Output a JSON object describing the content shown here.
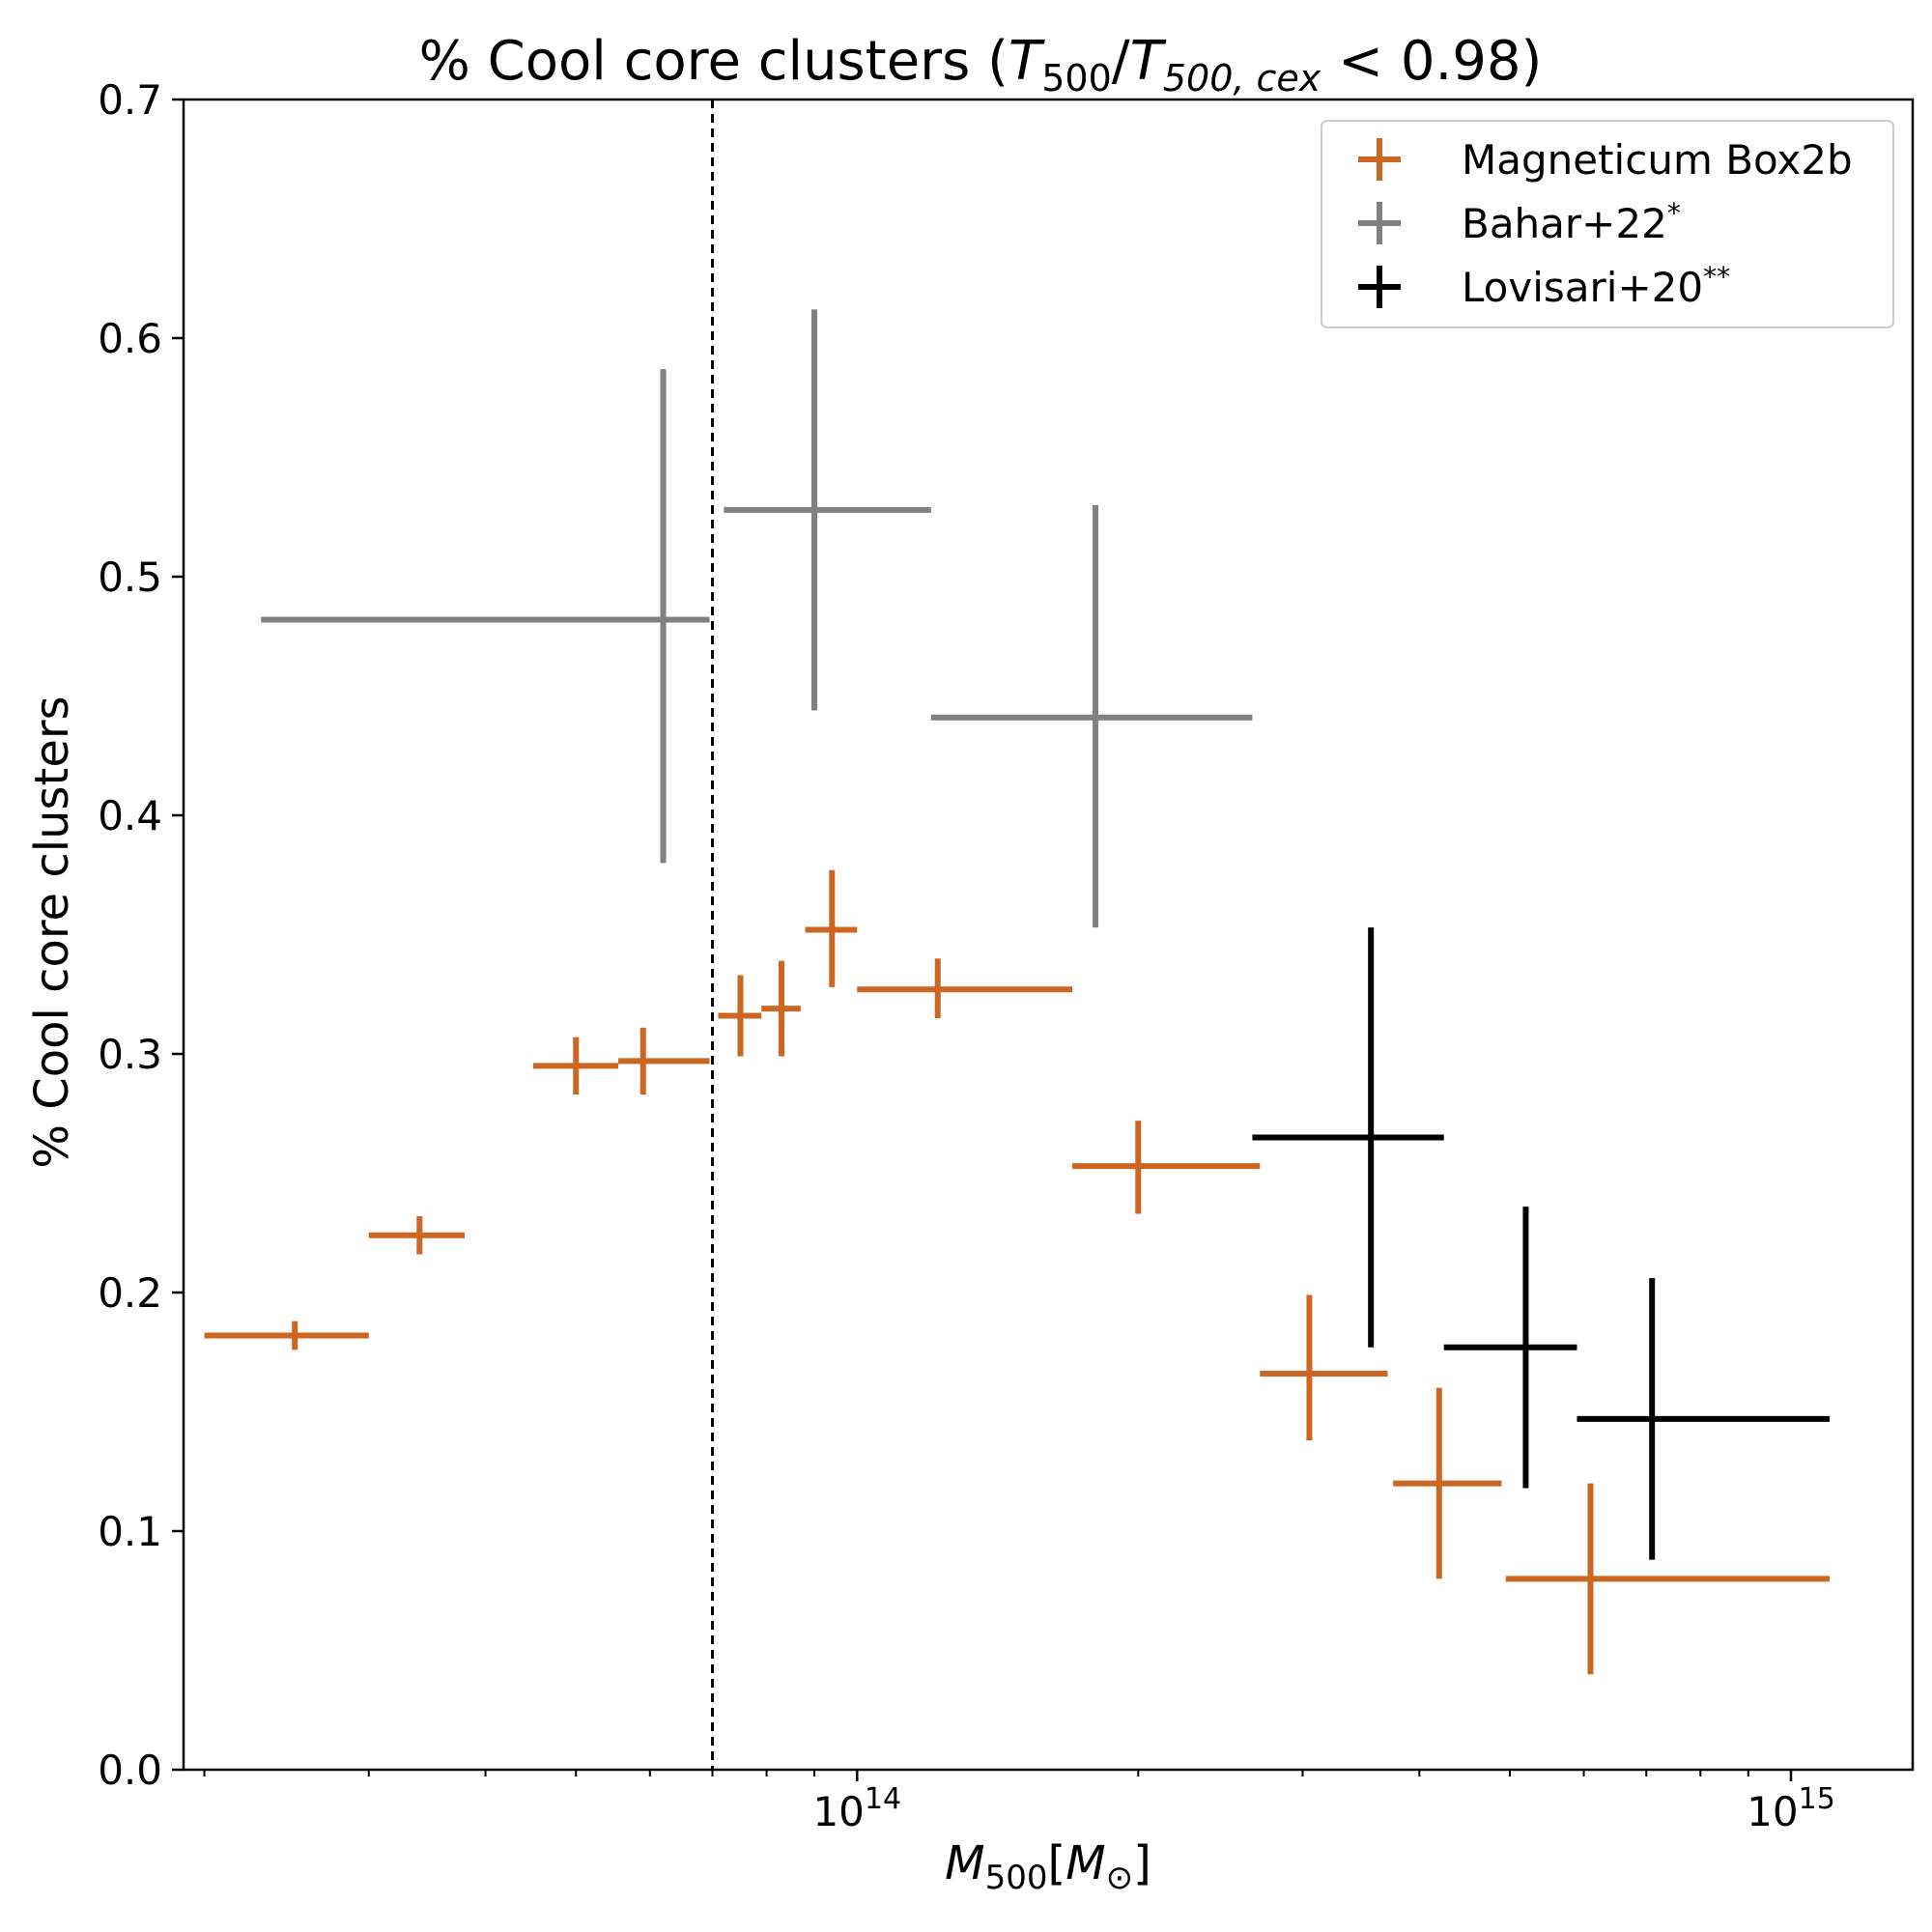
{
  "chart_data": {
    "type": "scatter",
    "title_parts": {
      "prefix": "% Cool core clusters (",
      "t1": "T",
      "t1_sub": "500",
      "slash": "/",
      "t2": "T",
      "t2_sub": "500, cex",
      "suffix": " < 0.98)"
    },
    "xlabel_parts": {
      "m": "M",
      "m_sub": "500",
      "open": "[",
      "msun": "M",
      "msun_sub": "⊙",
      "close": "]"
    },
    "ylabel": "% Cool core clusters",
    "xscale": "log",
    "xlim": [
      19000000000000.0,
      1350000000000000.0
    ],
    "ylim": [
      0.0,
      0.7
    ],
    "yticks": [
      0.0,
      0.1,
      0.2,
      0.3,
      0.4,
      0.5,
      0.6,
      0.7
    ],
    "ytick_labels": [
      "0.0",
      "0.1",
      "0.2",
      "0.3",
      "0.4",
      "0.5",
      "0.6",
      "0.7"
    ],
    "xticks_major": [
      {
        "value": 100000000000000.0,
        "base": "10",
        "exp": "14"
      },
      {
        "value": 1000000000000000.0,
        "base": "10",
        "exp": "15"
      }
    ],
    "xticks_minor": [
      20000000000000.0,
      30000000000000.0,
      40000000000000.0,
      50000000000000.0,
      60000000000000.0,
      70000000000000.0,
      80000000000000.0,
      90000000000000.0,
      200000000000000.0,
      300000000000000.0,
      400000000000000.0,
      500000000000000.0,
      600000000000000.0,
      700000000000000.0,
      800000000000000.0,
      900000000000000.0
    ],
    "vline": {
      "x": 70000000000000.0,
      "style": "dashed"
    },
    "legend_position": "top-right",
    "series": [
      {
        "name": "Magneticum Box2b",
        "legend_sup": "",
        "color": "#cc6620",
        "points": [
          {
            "x": 25000000000000.0,
            "xlo": 20000000000000.0,
            "xhi": 30000000000000.0,
            "y": 0.182,
            "ylo": 0.176,
            "yhi": 0.188
          },
          {
            "x": 34000000000000.0,
            "xlo": 30000000000000.0,
            "xhi": 38000000000000.0,
            "y": 0.224,
            "ylo": 0.216,
            "yhi": 0.232
          },
          {
            "x": 50000000000000.0,
            "xlo": 45000000000000.0,
            "xhi": 55500000000000.0,
            "y": 0.295,
            "ylo": 0.283,
            "yhi": 0.307
          },
          {
            "x": 59000000000000.0,
            "xlo": 55500000000000.0,
            "xhi": 69500000000000.0,
            "y": 0.297,
            "ylo": 0.283,
            "yhi": 0.311
          },
          {
            "x": 75000000000000.0,
            "xlo": 71000000000000.0,
            "xhi": 79000000000000.0,
            "y": 0.316,
            "ylo": 0.299,
            "yhi": 0.333
          },
          {
            "x": 83000000000000.0,
            "xlo": 79000000000000.0,
            "xhi": 87000000000000.0,
            "y": 0.319,
            "ylo": 0.299,
            "yhi": 0.339
          },
          {
            "x": 94000000000000.0,
            "xlo": 88000000000000.0,
            "xhi": 100000000000000.0,
            "y": 0.352,
            "ylo": 0.328,
            "yhi": 0.377
          },
          {
            "x": 122000000000000.0,
            "xlo": 100000000000000.0,
            "xhi": 170000000000000.0,
            "y": 0.327,
            "ylo": 0.315,
            "yhi": 0.34
          },
          {
            "x": 200000000000000.0,
            "xlo": 170000000000000.0,
            "xhi": 270000000000000.0,
            "y": 0.253,
            "ylo": 0.233,
            "yhi": 0.272
          },
          {
            "x": 305000000000000.0,
            "xlo": 270000000000000.0,
            "xhi": 370000000000000.0,
            "y": 0.166,
            "ylo": 0.138,
            "yhi": 0.199
          },
          {
            "x": 420000000000000.0,
            "xlo": 375000000000000.0,
            "xhi": 490000000000000.0,
            "y": 0.12,
            "ylo": 0.08,
            "yhi": 0.16
          },
          {
            "x": 610000000000000.0,
            "xlo": 495000000000000.0,
            "xhi": 1100000000000000.0,
            "y": 0.08,
            "ylo": 0.04,
            "yhi": 0.12
          }
        ]
      },
      {
        "name": "Bahar+22",
        "legend_sup": "*",
        "color": "#808080",
        "points": [
          {
            "x": 62000000000000.0,
            "xlo": 23000000000000.0,
            "xhi": 69500000000000.0,
            "y": 0.482,
            "ylo": 0.38,
            "yhi": 0.587
          },
          {
            "x": 90000000000000.0,
            "xlo": 72000000000000.0,
            "xhi": 120000000000000.0,
            "y": 0.528,
            "ylo": 0.444,
            "yhi": 0.612
          },
          {
            "x": 180000000000000.0,
            "xlo": 120000000000000.0,
            "xhi": 265000000000000.0,
            "y": 0.441,
            "ylo": 0.353,
            "yhi": 0.53
          }
        ]
      },
      {
        "name": "Lovisari+20",
        "legend_sup": "**",
        "color": "#000000",
        "points": [
          {
            "x": 355000000000000.0,
            "xlo": 265000000000000.0,
            "xhi": 425000000000000.0,
            "y": 0.265,
            "ylo": 0.177,
            "yhi": 0.353
          },
          {
            "x": 520000000000000.0,
            "xlo": 425000000000000.0,
            "xhi": 590000000000000.0,
            "y": 0.177,
            "ylo": 0.118,
            "yhi": 0.236
          },
          {
            "x": 710000000000000.0,
            "xlo": 590000000000000.0,
            "xhi": 1100000000000000.0,
            "y": 0.147,
            "ylo": 0.088,
            "yhi": 0.206
          }
        ]
      }
    ]
  }
}
